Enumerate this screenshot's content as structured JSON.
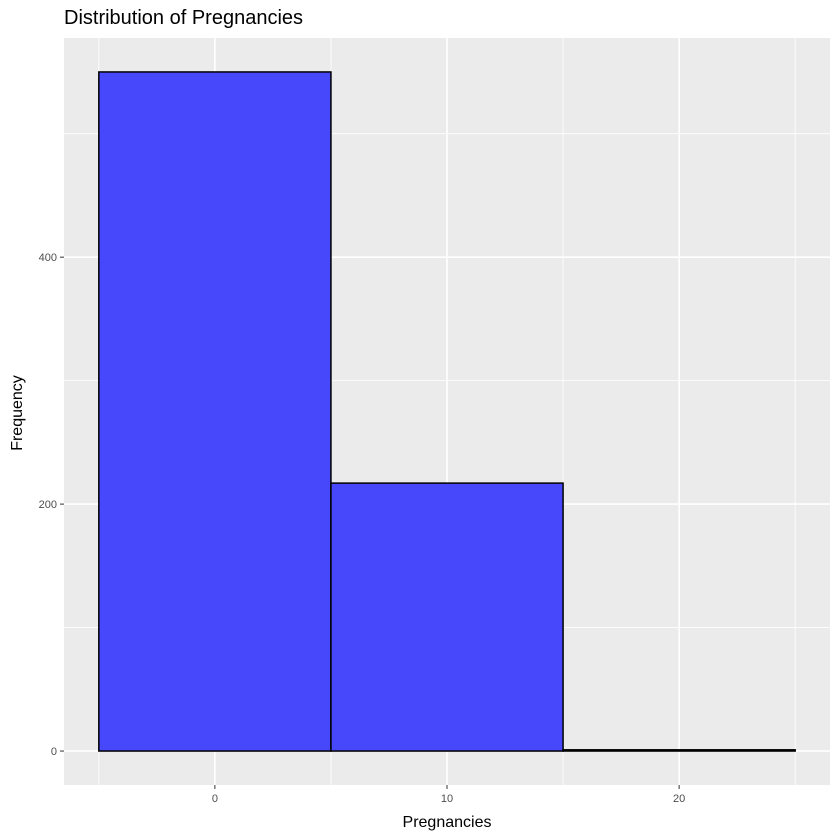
{
  "chart_data": {
    "type": "bar",
    "title": "Distribution of Pregnancies",
    "xlabel": "Pregnancies",
    "ylabel": "Frequency",
    "bins": [
      {
        "x0": -5,
        "x1": 5,
        "count": 550
      },
      {
        "x0": 5,
        "x1": 15,
        "count": 217
      },
      {
        "x0": 15,
        "x1": 25,
        "count": 1
      }
    ],
    "xlim": [
      -6.5,
      26.5
    ],
    "ylim": [
      -27.5,
      577.5
    ],
    "x_ticks": [
      0,
      10,
      20
    ],
    "x_tick_labels": [
      "0",
      "10",
      "20"
    ],
    "y_ticks": [
      0,
      200,
      400
    ],
    "y_tick_labels": [
      "0",
      "200",
      "400"
    ],
    "x_minor_ticks": [
      -5,
      5,
      15,
      25
    ],
    "y_minor_ticks": [
      100,
      300,
      500
    ],
    "grid": true,
    "bar_fill": "#4747FB",
    "bar_outline": "#000000",
    "panel_background": "#EBEBEB",
    "grid_color": "#FFFFFF"
  }
}
